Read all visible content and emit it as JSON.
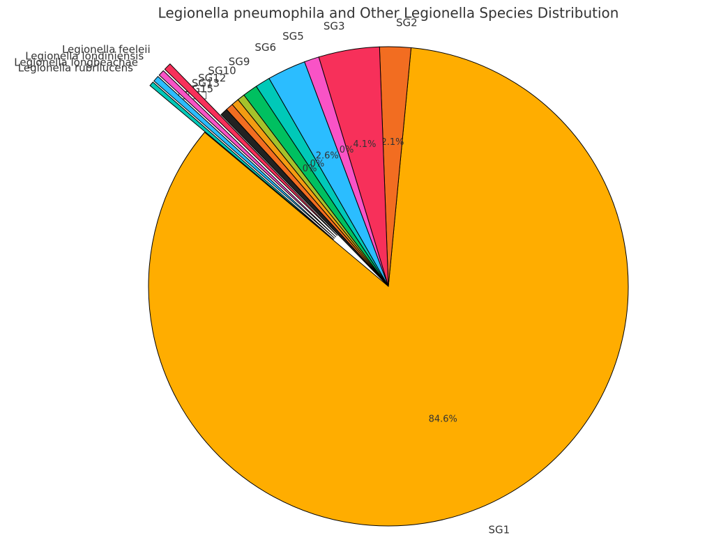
{
  "chart_data": {
    "type": "pie",
    "title": "Legionella pneumophila and Other Legionella Species Distribution",
    "categories": [
      "SG1",
      "SG2",
      "SG3",
      "SG5",
      "SG6",
      "SG9",
      "SG10",
      "SG12",
      "SG13",
      "SG15",
      "□□□",
      "Legionella feeleii",
      "Legionella londiniensis",
      "Legionella longbeachae",
      "Legionella rubrilucens"
    ],
    "values": [
      84.6,
      2.1,
      4.1,
      1.0,
      2.6,
      1.0,
      1.0,
      0.5,
      0.5,
      0.5,
      0.5,
      0.5,
      0.4,
      0.4,
      0.3
    ],
    "value_labels": [
      "84.6%",
      "2.1%",
      "4.1%",
      "1.0%",
      "2.6%",
      "1.0%",
      "1.0%",
      null,
      null,
      null,
      null,
      null,
      null,
      null,
      null
    ],
    "colors": [
      "#ffad00",
      "#f26d21",
      "#f7305a",
      "#f953c6",
      "#2bbdff",
      "#00c9b8",
      "#00c060",
      "#a5c22b",
      "#f39c12",
      "#f26d21",
      "#222222",
      "#f7305a",
      "#f953c6",
      "#2bbdff",
      "#00c9b8"
    ],
    "explode": [
      0,
      0,
      0,
      0,
      0,
      0,
      0,
      0,
      0,
      0,
      0,
      0.3,
      0.3,
      0.3,
      0.3
    ],
    "startangle": 140
  }
}
